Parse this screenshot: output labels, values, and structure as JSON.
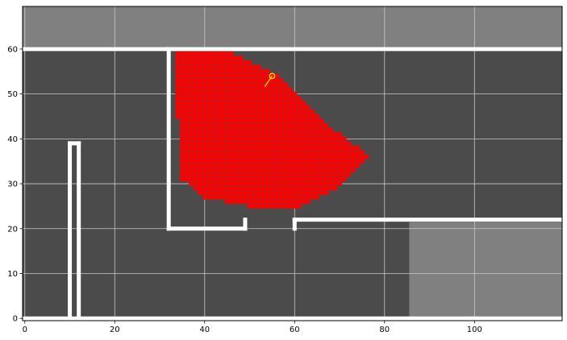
{
  "chart_data": {
    "type": "heatmap",
    "title": "",
    "xlabel": "",
    "ylabel": "",
    "xlim": [
      -0.5,
      119.5
    ],
    "ylim": [
      -0.5,
      69.5
    ],
    "grid": true,
    "x_ticks": [
      0,
      20,
      40,
      60,
      80,
      100
    ],
    "y_ticks": [
      0,
      10,
      20,
      30,
      40,
      50,
      60
    ],
    "colors": {
      "unknown": "#808080",
      "free": "#4b4b4b",
      "wall": "#ffffff",
      "particles": "#ff0000",
      "robot": "#ffd700",
      "grid": "#c8c8c8",
      "axes_border": "#000000"
    },
    "walls": [
      {
        "from": [
          0,
          60
        ],
        "to": [
          119,
          60
        ]
      },
      {
        "from": [
          32,
          60
        ],
        "to": [
          32,
          20
        ]
      },
      {
        "from": [
          32,
          20
        ],
        "to": [
          49,
          20
        ]
      },
      {
        "from": [
          49,
          20
        ],
        "to": [
          49,
          22
        ]
      },
      {
        "from": [
          60,
          22
        ],
        "to": [
          60,
          20
        ]
      },
      {
        "from": [
          60,
          22
        ],
        "to": [
          119,
          22
        ]
      },
      {
        "from": [
          10,
          0
        ],
        "to": [
          10,
          39
        ]
      },
      {
        "from": [
          10,
          39
        ],
        "to": [
          12,
          39
        ]
      },
      {
        "from": [
          12,
          39
        ],
        "to": [
          12,
          0
        ]
      },
      {
        "from": [
          0,
          0
        ],
        "to": [
          119,
          0
        ]
      }
    ],
    "free_regions": [
      {
        "x": [
          0,
          119
        ],
        "y": [
          22,
          60
        ]
      },
      {
        "x": [
          0,
          32
        ],
        "y": [
          0,
          60
        ]
      },
      {
        "x": [
          12,
          85
        ],
        "y": [
          0,
          22
        ]
      }
    ],
    "particle_region": {
      "polygon": [
        [
          34,
          60
        ],
        [
          45,
          60
        ],
        [
          55,
          55
        ],
        [
          62,
          49
        ],
        [
          69,
          42
        ],
        [
          77,
          36
        ],
        [
          71,
          30
        ],
        [
          62,
          25
        ],
        [
          50,
          25
        ],
        [
          40,
          27
        ],
        [
          35,
          31
        ],
        [
          34,
          45
        ]
      ],
      "step": 1
    },
    "robot_pose": {
      "x": 55,
      "y": 54,
      "theta_deg": 235
    }
  }
}
